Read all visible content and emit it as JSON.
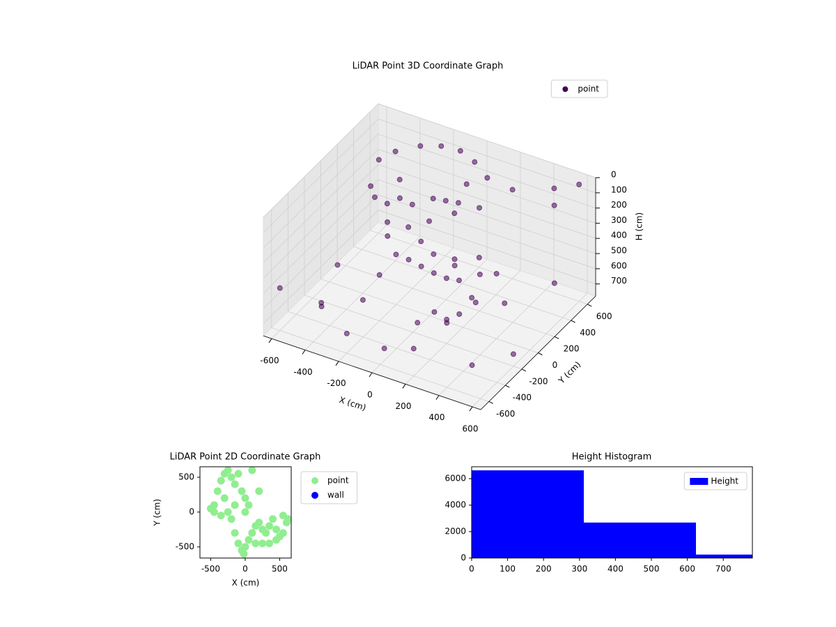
{
  "chart_data": [
    {
      "type": "scatter3d",
      "title": "LiDAR Point 3D Coordinate Graph",
      "x_label": "X (cm)",
      "y_label": "Y (cm)",
      "z_label": "H (cm)",
      "xlim": [
        -650,
        650
      ],
      "ylim": [
        -700,
        700
      ],
      "zlim": [
        0,
        780
      ],
      "z_inverted": true,
      "xticks": [
        -600,
        -400,
        -200,
        0,
        200,
        400,
        600
      ],
      "yticks": [
        -600,
        -400,
        -200,
        0,
        200,
        400,
        600
      ],
      "zticks": [
        0,
        100,
        200,
        300,
        400,
        500,
        600,
        700
      ],
      "grid": true,
      "legend": "upper right",
      "series": [
        {
          "name": "point",
          "color": "#440154",
          "x": [
            -450,
            -400,
            -300,
            -200,
            -100,
            0,
            100,
            -450,
            -450,
            -400,
            -350,
            -300,
            -200,
            -100,
            0,
            100,
            200,
            300,
            400,
            450,
            400,
            350,
            300,
            250,
            -250,
            -150,
            -50,
            50,
            -350,
            -300,
            -200,
            -100,
            0,
            150,
            200,
            100,
            200,
            300,
            500,
            600,
            550,
            -600,
            -400,
            -200,
            0,
            200,
            500,
            600,
            -500,
            -300,
            100,
            400,
            600,
            -550,
            250,
            350,
            -100,
            50,
            150,
            -250
          ],
          "y": [
            300,
            400,
            500,
            550,
            580,
            550,
            500,
            200,
            250,
            300,
            200,
            100,
            0,
            -50,
            -100,
            -150,
            -200,
            -250,
            -200,
            -100,
            -300,
            -350,
            -400,
            -300,
            300,
            350,
            300,
            250,
            350,
            250,
            150,
            100,
            50,
            0,
            -100,
            100,
            200,
            400,
            500,
            600,
            400,
            -600,
            -500,
            -600,
            -550,
            -600,
            -500,
            -200,
            -300,
            -200,
            -350,
            100,
            300,
            0,
            -450,
            -150,
            200,
            350,
            300,
            -100
          ],
          "z": [
            80,
            60,
            40,
            30,
            40,
            60,
            100,
            200,
            300,
            350,
            400,
            420,
            450,
            420,
            400,
            380,
            350,
            300,
            250,
            280,
            350,
            450,
            500,
            550,
            300,
            250,
            200,
            150,
            200,
            250,
            350,
            380,
            400,
            350,
            320,
            120,
            100,
            50,
            20,
            10,
            60,
            500,
            600,
            650,
            700,
            600,
            650,
            700,
            720,
            680,
            600,
            600,
            500,
            650,
            420,
            480,
            300,
            80,
            500,
            550
          ]
        }
      ]
    },
    {
      "type": "scatter",
      "title": "LiDAR Point 2D Coordinate Graph",
      "x_label": "X (cm)",
      "y_label": "Y (cm)",
      "xlim": [
        -656,
        667
      ],
      "ylim": [
        -660,
        650
      ],
      "xticks": [
        -500,
        0,
        500
      ],
      "yticks": [
        -500,
        0,
        500
      ],
      "legend": "outside upper right",
      "series": [
        {
          "name": "point",
          "color": "#90ee90",
          "x": [
            -500,
            -450,
            -400,
            -350,
            -300,
            -250,
            -200,
            -150,
            -100,
            -50,
            0,
            50,
            -300,
            -250,
            -200,
            -150,
            -100,
            -50,
            0,
            50,
            100,
            150,
            200,
            250,
            300,
            350,
            400,
            450,
            500,
            550,
            600,
            620,
            550,
            450,
            350,
            250,
            150,
            -350,
            -450,
            -20,
            100,
            200,
            -150,
            0
          ],
          "y": [
            50,
            100,
            300,
            450,
            550,
            600,
            500,
            400,
            550,
            300,
            200,
            100,
            200,
            0,
            -100,
            -300,
            -450,
            -550,
            -500,
            -400,
            -300,
            -200,
            -150,
            -250,
            -300,
            -200,
            -100,
            -250,
            -350,
            -300,
            -150,
            -100,
            -50,
            -400,
            -450,
            -450,
            -450,
            -50,
            0,
            -600,
            600,
            300,
            100,
            0
          ]
        },
        {
          "name": "wall",
          "color": "#0000ff",
          "x": [],
          "y": []
        }
      ]
    },
    {
      "type": "histogram",
      "title": "Height Histogram",
      "bins": [
        0,
        312,
        624,
        781
      ],
      "xlim": [
        0,
        781
      ],
      "ylim": [
        0,
        6900
      ],
      "xticks": [
        0,
        100,
        200,
        300,
        400,
        500,
        600,
        700
      ],
      "yticks": [
        0,
        2000,
        4000,
        6000
      ],
      "legend": "upper right",
      "series": [
        {
          "name": "Height",
          "color": "#0000ff",
          "values": [
            6630,
            2680,
            260
          ]
        }
      ]
    }
  ]
}
